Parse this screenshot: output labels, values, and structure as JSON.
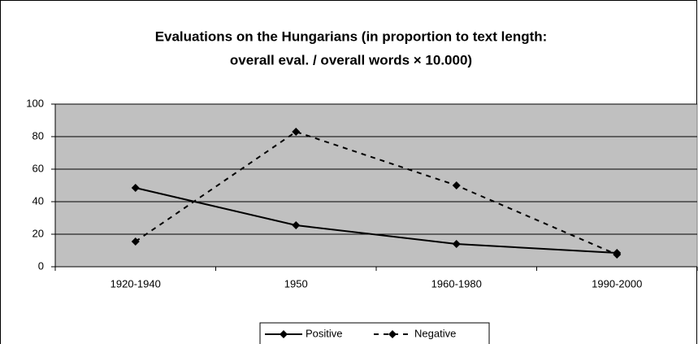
{
  "chart_data": {
    "type": "line",
    "title": [
      "Evaluations on the Hungarians (in proportion to text length:",
      "overall eval. / overall words × 10.000)"
    ],
    "categories": [
      "1920-1940",
      "1950",
      "1960-1980",
      "1990-2000"
    ],
    "series": [
      {
        "name": "Positive",
        "color": "#000000",
        "dash": false,
        "values": [
          48.5,
          25.5,
          14,
          8.5
        ]
      },
      {
        "name": "Negative",
        "color": "#000000",
        "dash": true,
        "values": [
          15.5,
          83,
          50,
          7.5
        ]
      }
    ],
    "ylim": [
      0,
      100
    ],
    "yticks": [
      0,
      20,
      40,
      60,
      80,
      100
    ],
    "grid": true,
    "legend": "bottom",
    "plot_background": "#c0c0c0"
  }
}
